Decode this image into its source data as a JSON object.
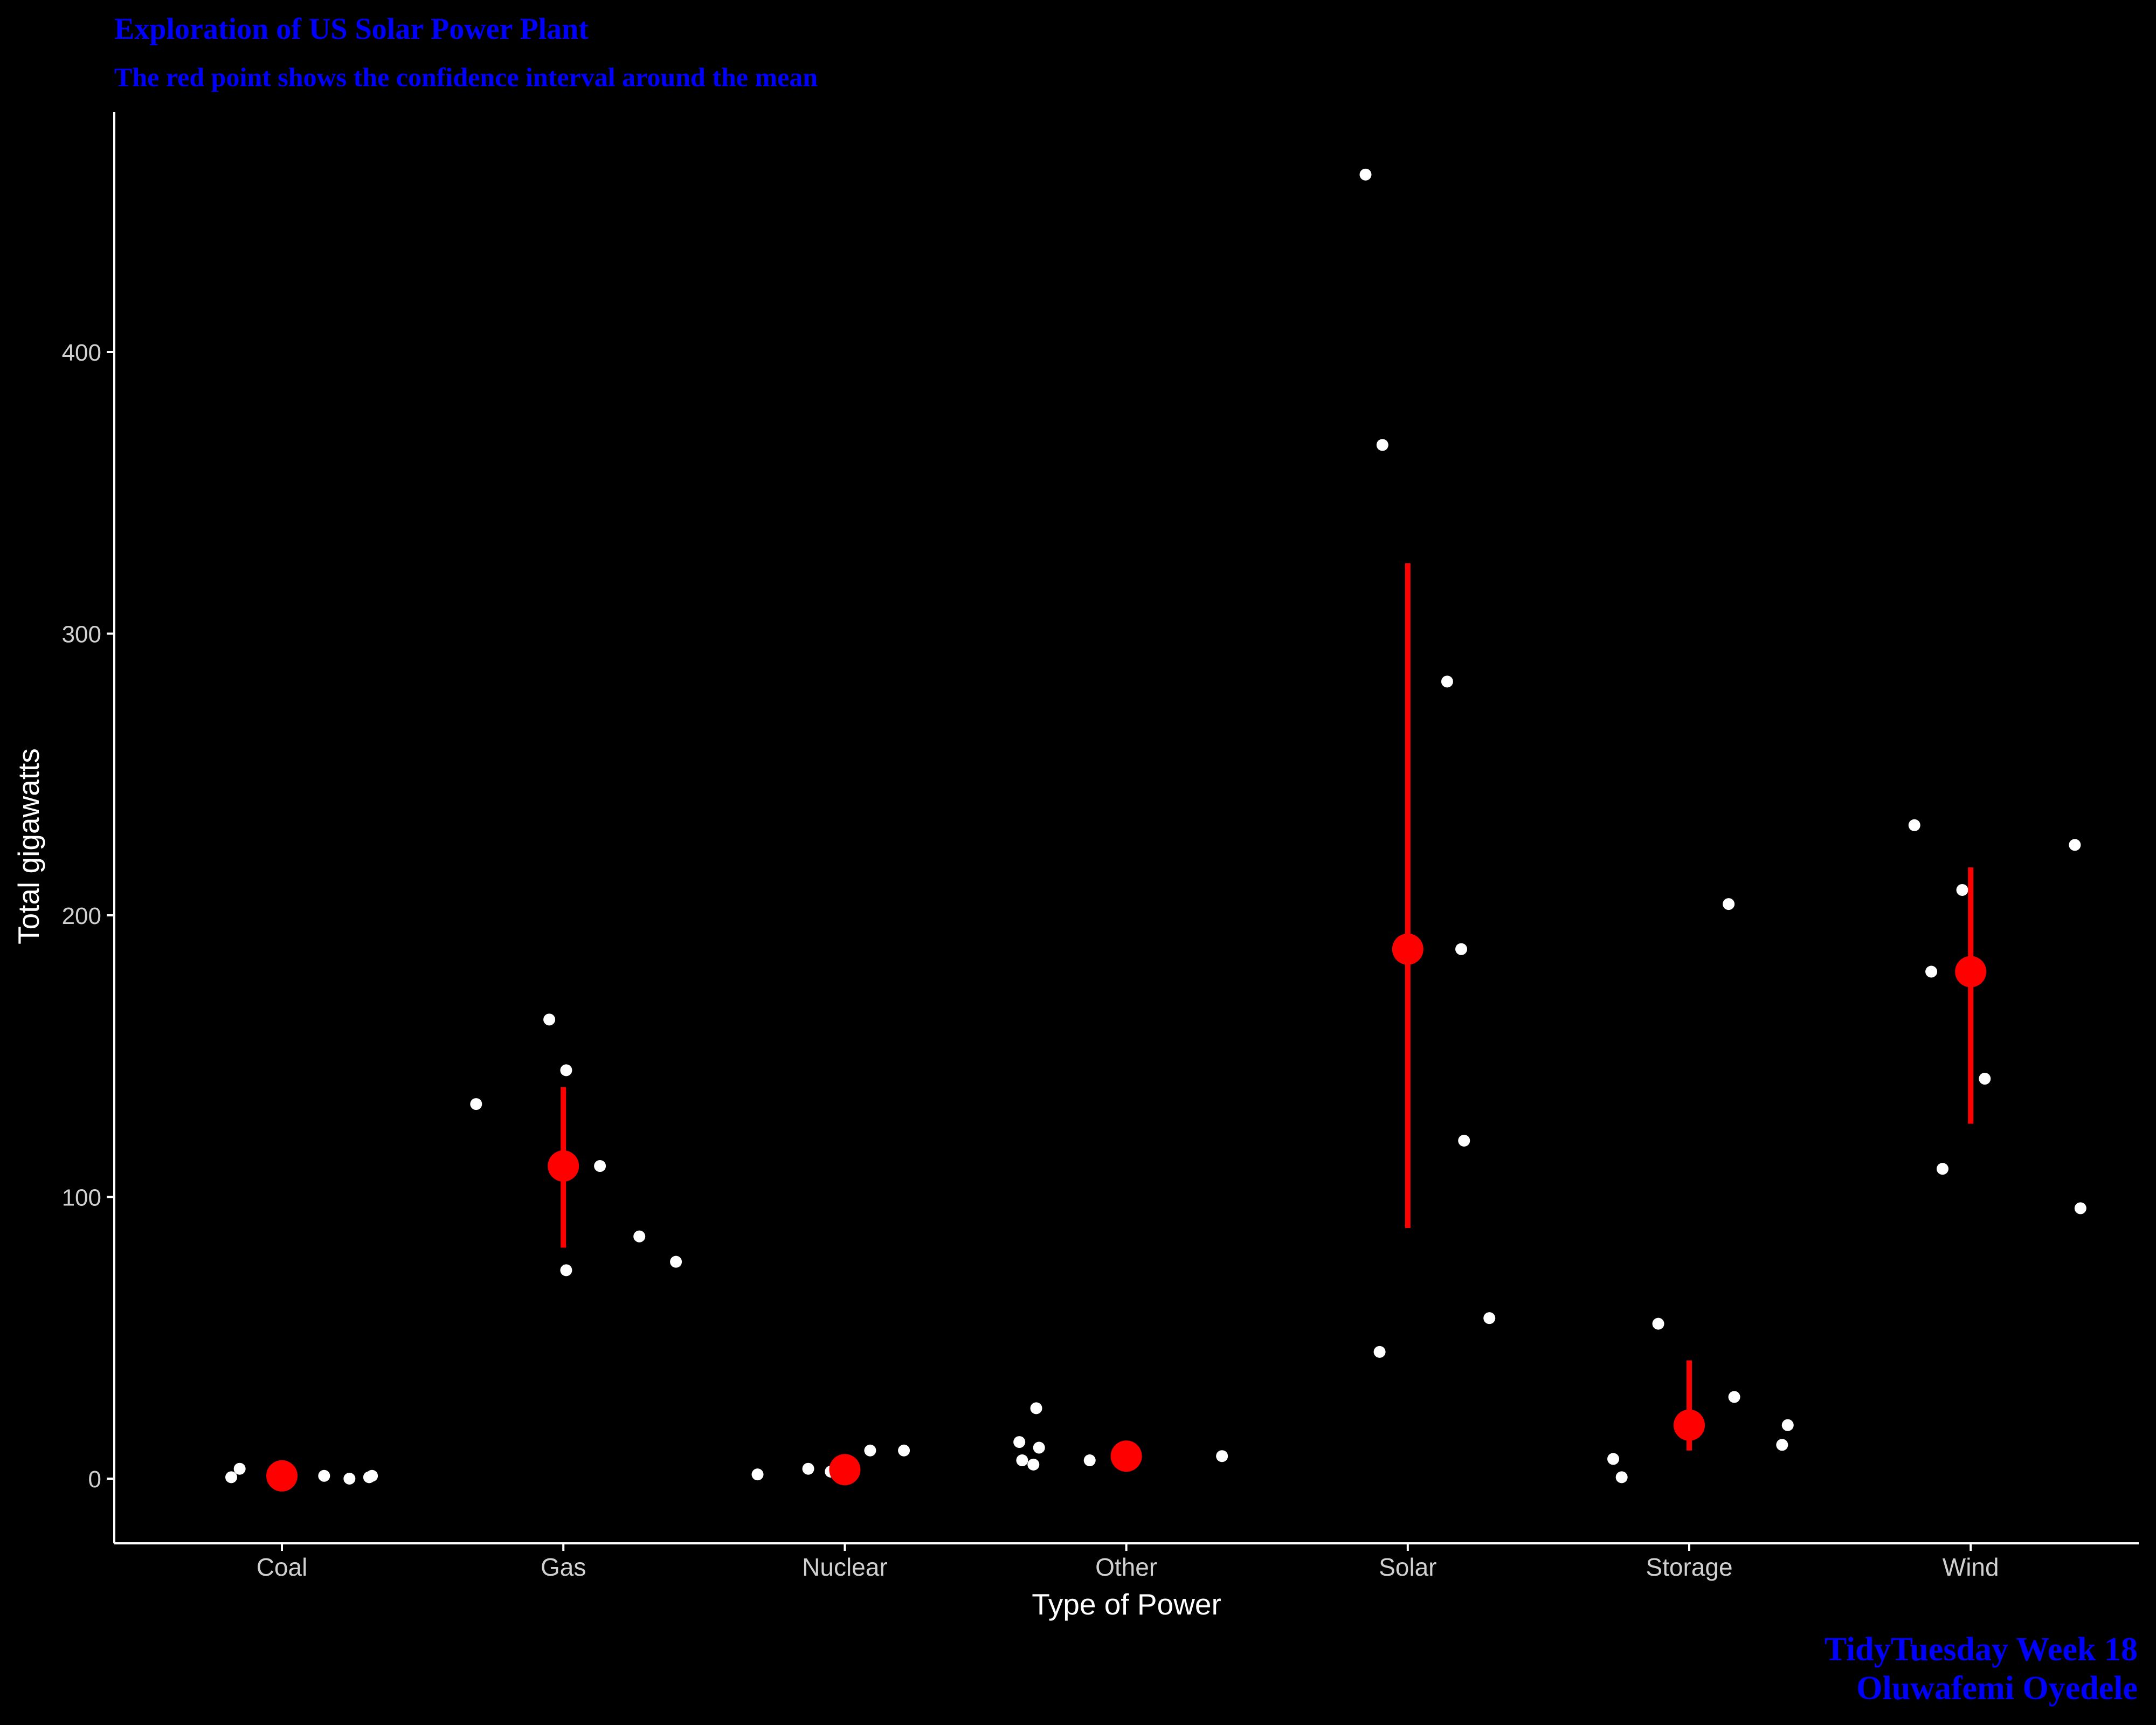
{
  "title": "Exploration of US Solar Power Plant",
  "subtitle": "The red point shows the confidence interval around the mean",
  "caption": {
    "line1": "TidyTuesday Week 18",
    "line2": "Oluwafemi Oyedele"
  },
  "colors": {
    "background": "#000000",
    "text_title": "#0000FF",
    "axis": "#FFFFFF",
    "tick_label": "#D0D0D0",
    "points": "#FFFFFF",
    "summary": "#FF0000"
  },
  "chart_data": {
    "type": "scatter",
    "title": "Exploration of US Solar Power Plant",
    "subtitle": "The red point shows the confidence interval around the mean",
    "xlabel": "Type of Power",
    "ylabel": "Total gigawatts",
    "categories": [
      "Coal",
      "Gas",
      "Nuclear",
      "Other",
      "Solar",
      "Storage",
      "Wind"
    ],
    "ylim": [
      -23,
      483
    ],
    "yticks": [
      0,
      100,
      200,
      300,
      400
    ],
    "grid": false,
    "points": [
      {
        "category": "Coal",
        "offset": -0.18,
        "y": 0.5
      },
      {
        "category": "Coal",
        "offset": -0.15,
        "y": 3.5
      },
      {
        "category": "Coal",
        "offset": 0.15,
        "y": 1.0
      },
      {
        "category": "Coal",
        "offset": 0.24,
        "y": 0.0
      },
      {
        "category": "Coal",
        "offset": 0.31,
        "y": 0.5
      },
      {
        "category": "Coal",
        "offset": 0.32,
        "y": 1.0
      },
      {
        "category": "Gas",
        "offset": -0.31,
        "y": 133
      },
      {
        "category": "Gas",
        "offset": -0.05,
        "y": 163
      },
      {
        "category": "Gas",
        "offset": 0.01,
        "y": 145
      },
      {
        "category": "Gas",
        "offset": 0.01,
        "y": 74
      },
      {
        "category": "Gas",
        "offset": 0.13,
        "y": 111
      },
      {
        "category": "Gas",
        "offset": 0.27,
        "y": 86
      },
      {
        "category": "Gas",
        "offset": 0.4,
        "y": 77
      },
      {
        "category": "Nuclear",
        "offset": -0.31,
        "y": 1.5
      },
      {
        "category": "Nuclear",
        "offset": -0.13,
        "y": 3.5
      },
      {
        "category": "Nuclear",
        "offset": -0.05,
        "y": 2.5
      },
      {
        "category": "Nuclear",
        "offset": 0.09,
        "y": 10
      },
      {
        "category": "Nuclear",
        "offset": 0.21,
        "y": 10
      },
      {
        "category": "Other",
        "offset": -0.38,
        "y": 13
      },
      {
        "category": "Other",
        "offset": -0.37,
        "y": 6.5
      },
      {
        "category": "Other",
        "offset": -0.33,
        "y": 5
      },
      {
        "category": "Other",
        "offset": -0.32,
        "y": 25
      },
      {
        "category": "Other",
        "offset": -0.31,
        "y": 11
      },
      {
        "category": "Other",
        "offset": -0.13,
        "y": 6.5
      },
      {
        "category": "Other",
        "offset": 0.34,
        "y": 8
      },
      {
        "category": "Solar",
        "offset": -0.15,
        "y": 463
      },
      {
        "category": "Solar",
        "offset": -0.1,
        "y": 45
      },
      {
        "category": "Solar",
        "offset": -0.09,
        "y": 367
      },
      {
        "category": "Solar",
        "offset": 0.14,
        "y": 283
      },
      {
        "category": "Solar",
        "offset": 0.19,
        "y": 188
      },
      {
        "category": "Solar",
        "offset": 0.2,
        "y": 120
      },
      {
        "category": "Solar",
        "offset": 0.29,
        "y": 57
      },
      {
        "category": "Storage",
        "offset": -0.27,
        "y": 7
      },
      {
        "category": "Storage",
        "offset": -0.24,
        "y": 0.5
      },
      {
        "category": "Storage",
        "offset": -0.11,
        "y": 55
      },
      {
        "category": "Storage",
        "offset": 0.14,
        "y": 204
      },
      {
        "category": "Storage",
        "offset": 0.16,
        "y": 29
      },
      {
        "category": "Storage",
        "offset": 0.33,
        "y": 12
      },
      {
        "category": "Storage",
        "offset": 0.35,
        "y": 19
      },
      {
        "category": "Wind",
        "offset": -0.2,
        "y": 232
      },
      {
        "category": "Wind",
        "offset": -0.14,
        "y": 180
      },
      {
        "category": "Wind",
        "offset": -0.1,
        "y": 110
      },
      {
        "category": "Wind",
        "offset": -0.03,
        "y": 209
      },
      {
        "category": "Wind",
        "offset": 0.05,
        "y": 142
      },
      {
        "category": "Wind",
        "offset": 0.37,
        "y": 225
      },
      {
        "category": "Wind",
        "offset": 0.39,
        "y": 96
      }
    ],
    "summary": [
      {
        "category": "Coal",
        "mean": 1.0,
        "lower": 0.4,
        "upper": 1.8
      },
      {
        "category": "Gas",
        "mean": 111,
        "lower": 82,
        "upper": 139
      },
      {
        "category": "Nuclear",
        "mean": 3.2,
        "lower": 1.5,
        "upper": 5.5
      },
      {
        "category": "Other",
        "mean": 8.0,
        "lower": 5.5,
        "upper": 11
      },
      {
        "category": "Solar",
        "mean": 188,
        "lower": 89,
        "upper": 325
      },
      {
        "category": "Storage",
        "mean": 19,
        "lower": 10,
        "upper": 42
      },
      {
        "category": "Wind",
        "mean": 180,
        "lower": 126,
        "upper": 217
      }
    ]
  }
}
